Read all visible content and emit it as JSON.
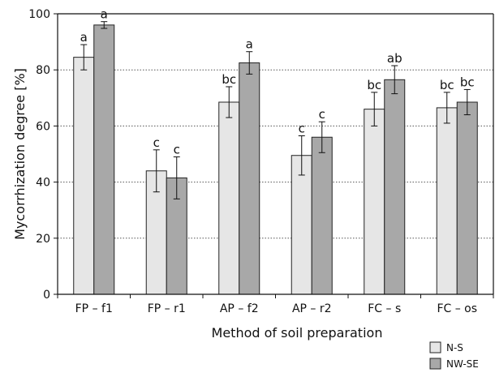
{
  "chart_data": {
    "type": "bar",
    "title": "",
    "xlabel": "Method of soil preparation",
    "ylabel": "Mycorrhization degree [%]",
    "ylim": [
      0,
      100
    ],
    "yticks": [
      0,
      20,
      40,
      60,
      80,
      100
    ],
    "grid": "horizontal dotted at 20, 40, 60, 80",
    "legend_position": "bottom-right",
    "categories": [
      "FP – f1",
      "FP – r1",
      "AP – f2",
      "AP – r2",
      "FC – s",
      "FC – os"
    ],
    "series": [
      {
        "name": "N-S",
        "color": "#e6e6e6",
        "values": [
          84.5,
          44,
          68.5,
          49.5,
          66,
          66.5
        ],
        "errors": [
          4.5,
          7.5,
          5.5,
          7,
          6,
          5.5
        ],
        "letters": [
          "a",
          "c",
          "bc",
          "c",
          "bc",
          "bc"
        ]
      },
      {
        "name": "NW-SE",
        "color": "#a8a8a8",
        "values": [
          96,
          41.5,
          82.5,
          56,
          76.5,
          68.5
        ],
        "errors": [
          1.2,
          7.5,
          4,
          5.5,
          5,
          4.5
        ],
        "letters": [
          "a",
          "c",
          "a",
          "c",
          "ab",
          "bc"
        ]
      }
    ]
  }
}
